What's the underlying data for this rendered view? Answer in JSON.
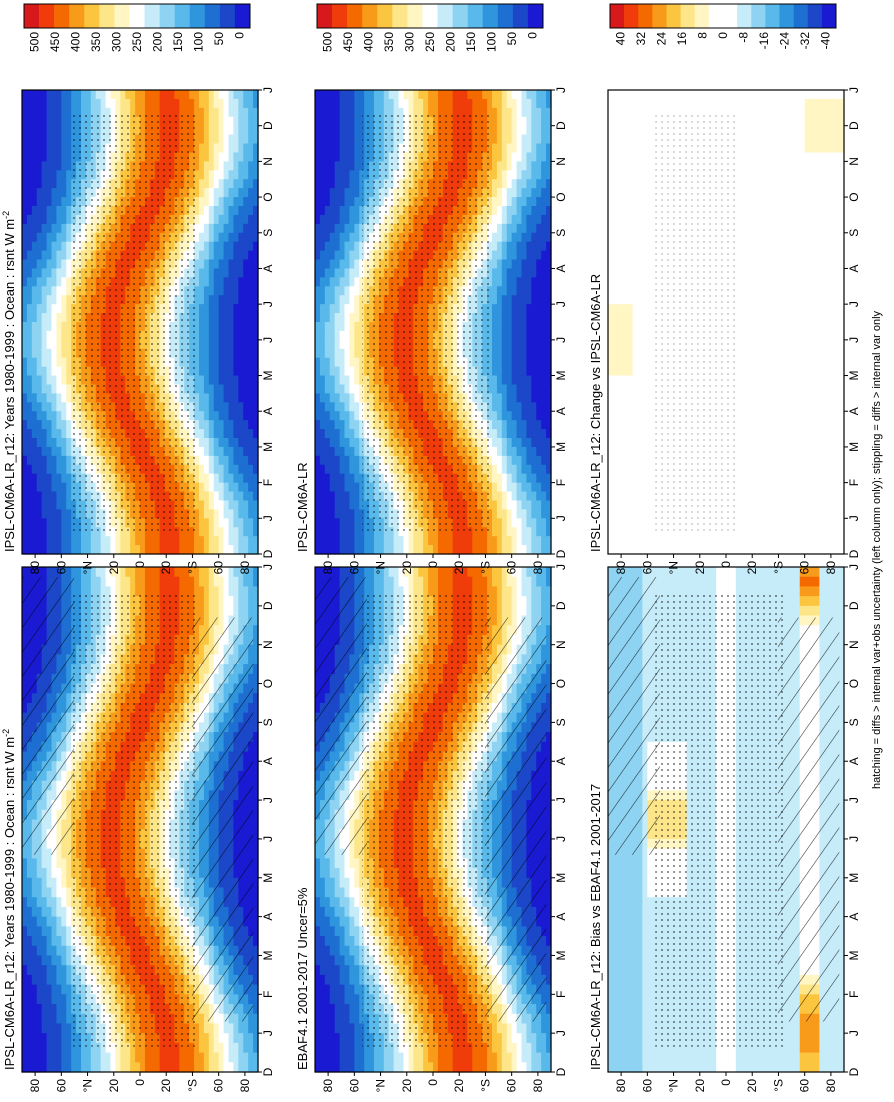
{
  "figure_type": "rotated latitude-month filled contour maps with colorbars",
  "footer_note": "hatching = diffs > internal var+obs uncertainty (left column only); stippling = diffs > internal var only",
  "chart_data": [
    {
      "type": "heatmap",
      "id": "p00",
      "title": "IPSL-CM6A-LR_r12: Years 1980-1999 : Ocean : rsnt W m",
      "title_superscript": "-2",
      "x_ticks": [
        "D",
        "J",
        "F",
        "M",
        "A",
        "M",
        "J",
        "J",
        "A",
        "S",
        "O",
        "N",
        "D",
        "J"
      ],
      "y_ticks": [
        "80",
        "60",
        "°N",
        "20",
        "0",
        "20",
        "°S",
        "60",
        "80"
      ],
      "colorbar": [
        "500",
        "450",
        "400",
        "350",
        "300",
        "250",
        "200",
        "150",
        "100",
        "50",
        "0"
      ],
      "field": "absolute",
      "overlays": [
        "hatching",
        "stippling"
      ]
    },
    {
      "type": "heatmap",
      "id": "p01",
      "title": "IPSL-CM6A-LR_r12: Years 1980-1999 : Ocean : rsnt W m",
      "title_superscript": "-2",
      "x_ticks": [
        "D",
        "J",
        "F",
        "M",
        "A",
        "M",
        "J",
        "J",
        "A",
        "S",
        "O",
        "N",
        "D",
        "J"
      ],
      "y_ticks": [
        "80",
        "60",
        "°N",
        "20",
        "0",
        "20",
        "°S",
        "60",
        "80"
      ],
      "colorbar": [
        "500",
        "450",
        "400",
        "350",
        "300",
        "250",
        "200",
        "150",
        "100",
        "50",
        "0"
      ],
      "field": "absolute",
      "overlays": [
        "stippling"
      ]
    },
    {
      "type": "heatmap",
      "id": "p10",
      "title": "EBAF4.1 2001-2017 Uncer=5%",
      "title_superscript": "",
      "x_ticks": [
        "D",
        "J",
        "F",
        "M",
        "A",
        "M",
        "J",
        "J",
        "A",
        "S",
        "O",
        "N",
        "D",
        "J"
      ],
      "y_ticks": [
        "80",
        "60",
        "°N",
        "20",
        "0",
        "20",
        "°S",
        "60",
        "80"
      ],
      "colorbar": [
        "500",
        "450",
        "400",
        "350",
        "300",
        "250",
        "200",
        "150",
        "100",
        "50",
        "0"
      ],
      "field": "absolute",
      "overlays": [
        "hatching",
        "stippling"
      ]
    },
    {
      "type": "heatmap",
      "id": "p11",
      "title": "IPSL-CM6A-LR",
      "title_superscript": "",
      "x_ticks": [
        "D",
        "J",
        "F",
        "M",
        "A",
        "M",
        "J",
        "J",
        "A",
        "S",
        "O",
        "N",
        "D",
        "J"
      ],
      "y_ticks": [
        "80",
        "60",
        "°N",
        "20",
        "0",
        "20",
        "°S",
        "60",
        "80"
      ],
      "colorbar": [
        "500",
        "450",
        "400",
        "350",
        "300",
        "250",
        "200",
        "150",
        "100",
        "50",
        "0"
      ],
      "field": "absolute",
      "overlays": [
        "stippling"
      ]
    },
    {
      "type": "heatmap",
      "id": "p20",
      "title": "IPSL-CM6A-LR_r12: Bias vs EBAF4.1 2001-2017",
      "title_superscript": "",
      "x_ticks": [
        "D",
        "J",
        "F",
        "M",
        "A",
        "M",
        "J",
        "J",
        "A",
        "S",
        "O",
        "N",
        "D",
        "J"
      ],
      "y_ticks": [
        "80",
        "60",
        "°N",
        "20",
        "0",
        "20",
        "°S",
        "60",
        "80"
      ],
      "colorbar": [
        "40",
        "32",
        "24",
        "16",
        "8",
        "0",
        "-8",
        "-16",
        "-24",
        "-32",
        "-40"
      ],
      "field": "bias",
      "overlays": [
        "hatching",
        "stippling"
      ]
    },
    {
      "type": "heatmap",
      "id": "p21",
      "title": "IPSL-CM6A-LR_r12: Change vs IPSL-CM6A-LR",
      "title_superscript": "",
      "x_ticks": [
        "D",
        "J",
        "F",
        "M",
        "A",
        "M",
        "J",
        "J",
        "A",
        "S",
        "O",
        "N",
        "D",
        "J"
      ],
      "y_ticks": [
        "80",
        "60",
        "°N",
        "20",
        "0",
        "20",
        "°S",
        "60",
        "80"
      ],
      "colorbar": [
        "40",
        "32",
        "24",
        "16",
        "8",
        "0",
        "-8",
        "-16",
        "-24",
        "-32",
        "-40"
      ],
      "field": "change",
      "overlays": [
        "stippling"
      ]
    }
  ],
  "colors": {
    "absolute_scale": [
      "#d7191c",
      "#f03c0a",
      "#f56a00",
      "#f99b1a",
      "#fbc53f",
      "#fde68a",
      "#fff6c4",
      "#ffffff",
      "#c7ecf9",
      "#8fd3f2",
      "#58b9ea",
      "#2f95dd",
      "#1e6fd2",
      "#1b47c8",
      "#1a1ad2"
    ],
    "diff_scale": [
      "#d7191c",
      "#f03c0a",
      "#f56a00",
      "#f99b1a",
      "#fbc53f",
      "#fde68a",
      "#fff6c4",
      "#ffffff",
      "#ffffff",
      "#c7ecf9",
      "#8fd3f2",
      "#58b9ea",
      "#2f95dd",
      "#1e6fd2",
      "#1b47c8",
      "#1a1ad2"
    ]
  }
}
